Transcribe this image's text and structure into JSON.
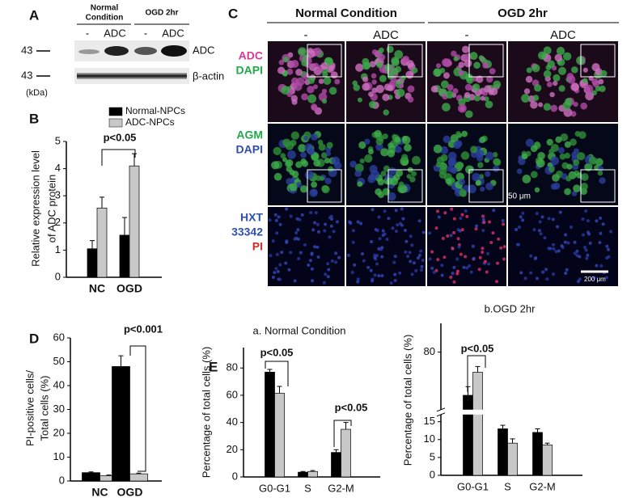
{
  "panels": [
    "A",
    "B",
    "C",
    "D",
    "E"
  ],
  "blot": {
    "groups": [
      [
        "Normal",
        "Condition"
      ],
      [
        "OGD 2hr"
      ]
    ],
    "lanes": [
      "-",
      "ADC",
      "-",
      "ADC"
    ],
    "markers": [
      "43",
      "43"
    ],
    "rows": [
      "ADC",
      "β-actin"
    ],
    "unit": "(kDa)"
  },
  "microscopy": {
    "groups": [
      "Normal Condition",
      "OGD 2hr"
    ],
    "columns": [
      "-",
      "ADC",
      "-",
      "ADC"
    ],
    "rows": [
      [
        "ADC",
        "DAPI"
      ],
      [
        "AGM",
        "DAPI"
      ],
      [
        "HXT",
        "33342",
        "PI"
      ]
    ],
    "scale_bars": [
      "50 μm",
      "200 μm"
    ]
  },
  "chart_data": [
    {
      "type": "bar",
      "ylabel": [
        "Relative expression level",
        "of ADC protein"
      ],
      "categories": [
        "NC",
        "OGD"
      ],
      "series": [
        {
          "name": "Normal-NPCs",
          "color": "#000000",
          "values": [
            1.05,
            1.55
          ],
          "errors": [
            0.3,
            0.65
          ]
        },
        {
          "name": "ADC-NPCs",
          "color": "#c8c8c8",
          "values": [
            2.55,
            4.1
          ],
          "errors": [
            0.4,
            0.45
          ]
        }
      ],
      "ylim": [
        0,
        5
      ],
      "yticks": [
        0,
        1,
        2,
        3,
        4,
        5
      ],
      "annotations": [
        "p<0.05"
      ],
      "legend": "top"
    },
    {
      "type": "bar",
      "ylabel": [
        "PI-positive cells/",
        "Total cells   (%)"
      ],
      "categories": [
        "NC",
        "OGD"
      ],
      "series": [
        {
          "name": "Normal-NPCs",
          "color": "#000000",
          "values": [
            3.5,
            48
          ],
          "errors": [
            0.3,
            4.5
          ]
        },
        {
          "name": "ADC-NPCs",
          "color": "#c8c8c8",
          "values": [
            2.2,
            3
          ],
          "errors": [
            0.3,
            0.3
          ]
        }
      ],
      "ylim": [
        0,
        60
      ],
      "yticks": [
        0,
        10,
        20,
        30,
        40,
        50,
        60
      ],
      "annotations": [
        "p<0.001"
      ]
    },
    {
      "type": "bar",
      "title": "a. Normal Condition",
      "ylabel": [
        "Percentage of total cells (%)"
      ],
      "categories": [
        "G0-G1",
        "S",
        "G2-M"
      ],
      "series": [
        {
          "name": "Normal-NPCs",
          "color": "#000000",
          "values": [
            77,
            3.5,
            18
          ],
          "errors": [
            2,
            0.5,
            2
          ]
        },
        {
          "name": "ADC-NPCs",
          "color": "#c8c8c8",
          "values": [
            61.5,
            4,
            35
          ],
          "errors": [
            5,
            0.7,
            5
          ]
        }
      ],
      "ylim": [
        0,
        95
      ],
      "yticks": [
        0,
        20,
        40,
        60,
        80
      ],
      "annotations": [
        "p<0.05",
        "p<0.05"
      ]
    },
    {
      "type": "bar",
      "title": "b.OGD 2hr",
      "ylabel": [
        "Percentage of total cells (%)"
      ],
      "categories": [
        "G0-G1",
        "S",
        "G2-M"
      ],
      "series": [
        {
          "name": "Normal-NPCs",
          "color": "#000000",
          "values": [
            65,
            13,
            12
          ],
          "errors": [
            3,
            1,
            1
          ]
        },
        {
          "name": "ADC-NPCs",
          "color": "#c8c8c8",
          "values": [
            73,
            9,
            8.5
          ],
          "errors": [
            2,
            1.2,
            0.5
          ]
        }
      ],
      "ylim": [
        0,
        90
      ],
      "axis_break": [
        17,
        60
      ],
      "yticks": [
        0,
        5,
        10,
        15,
        80
      ],
      "annotations": [
        "p<0.05"
      ]
    }
  ]
}
